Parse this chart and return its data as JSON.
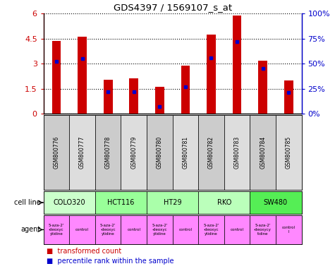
{
  "title": "GDS4397 / 1569107_s_at",
  "samples": [
    "GSM800776",
    "GSM800777",
    "GSM800778",
    "GSM800779",
    "GSM800780",
    "GSM800781",
    "GSM800782",
    "GSM800783",
    "GSM800784",
    "GSM800785"
  ],
  "transformed_count": [
    4.38,
    4.62,
    2.05,
    2.12,
    1.62,
    2.88,
    4.75,
    5.88,
    3.18,
    2.0
  ],
  "percentile_rank": [
    52,
    55,
    22,
    22,
    7,
    27,
    56,
    72,
    45,
    21
  ],
  "ylim_left": [
    0,
    6
  ],
  "ylim_right": [
    0,
    100
  ],
  "yticks_left": [
    0,
    1.5,
    3.0,
    4.5,
    6.0
  ],
  "yticks_right": [
    0,
    25,
    50,
    75,
    100
  ],
  "ytick_labels_left": [
    "0",
    "1.5",
    "3",
    "4.5",
    "6"
  ],
  "ytick_labels_right": [
    "0%",
    "25%",
    "50%",
    "75%",
    "100%"
  ],
  "bar_color": "#cc0000",
  "dot_color": "#0000cc",
  "cell_lines": [
    {
      "name": "COLO320",
      "start": 0,
      "end": 2,
      "color": "#ccffcc"
    },
    {
      "name": "HCT116",
      "start": 2,
      "end": 4,
      "color": "#99ff99"
    },
    {
      "name": "HT29",
      "start": 4,
      "end": 6,
      "color": "#aaffaa"
    },
    {
      "name": "RKO",
      "start": 6,
      "end": 8,
      "color": "#bbffbb"
    },
    {
      "name": "SW480",
      "start": 8,
      "end": 10,
      "color": "#55ee55"
    }
  ],
  "agent_labels": [
    "5-aza-2'\n-deoxyc\nytidine",
    "control",
    "5-aza-2'\n-deoxyc\nytidine",
    "control",
    "5-aza-2'\n-deoxyc\nytidine",
    "control",
    "5-aza-2'\n-deoxyc\nytidine",
    "control",
    "5-aza-2'\n-deoxycy\ntidine",
    "control\nl"
  ],
  "agent_color": "#ff88ff",
  "sample_bg_even": "#cccccc",
  "sample_bg_odd": "#dddddd",
  "legend_red": "transformed count",
  "legend_blue": "percentile rank within the sample",
  "bar_width": 0.35
}
